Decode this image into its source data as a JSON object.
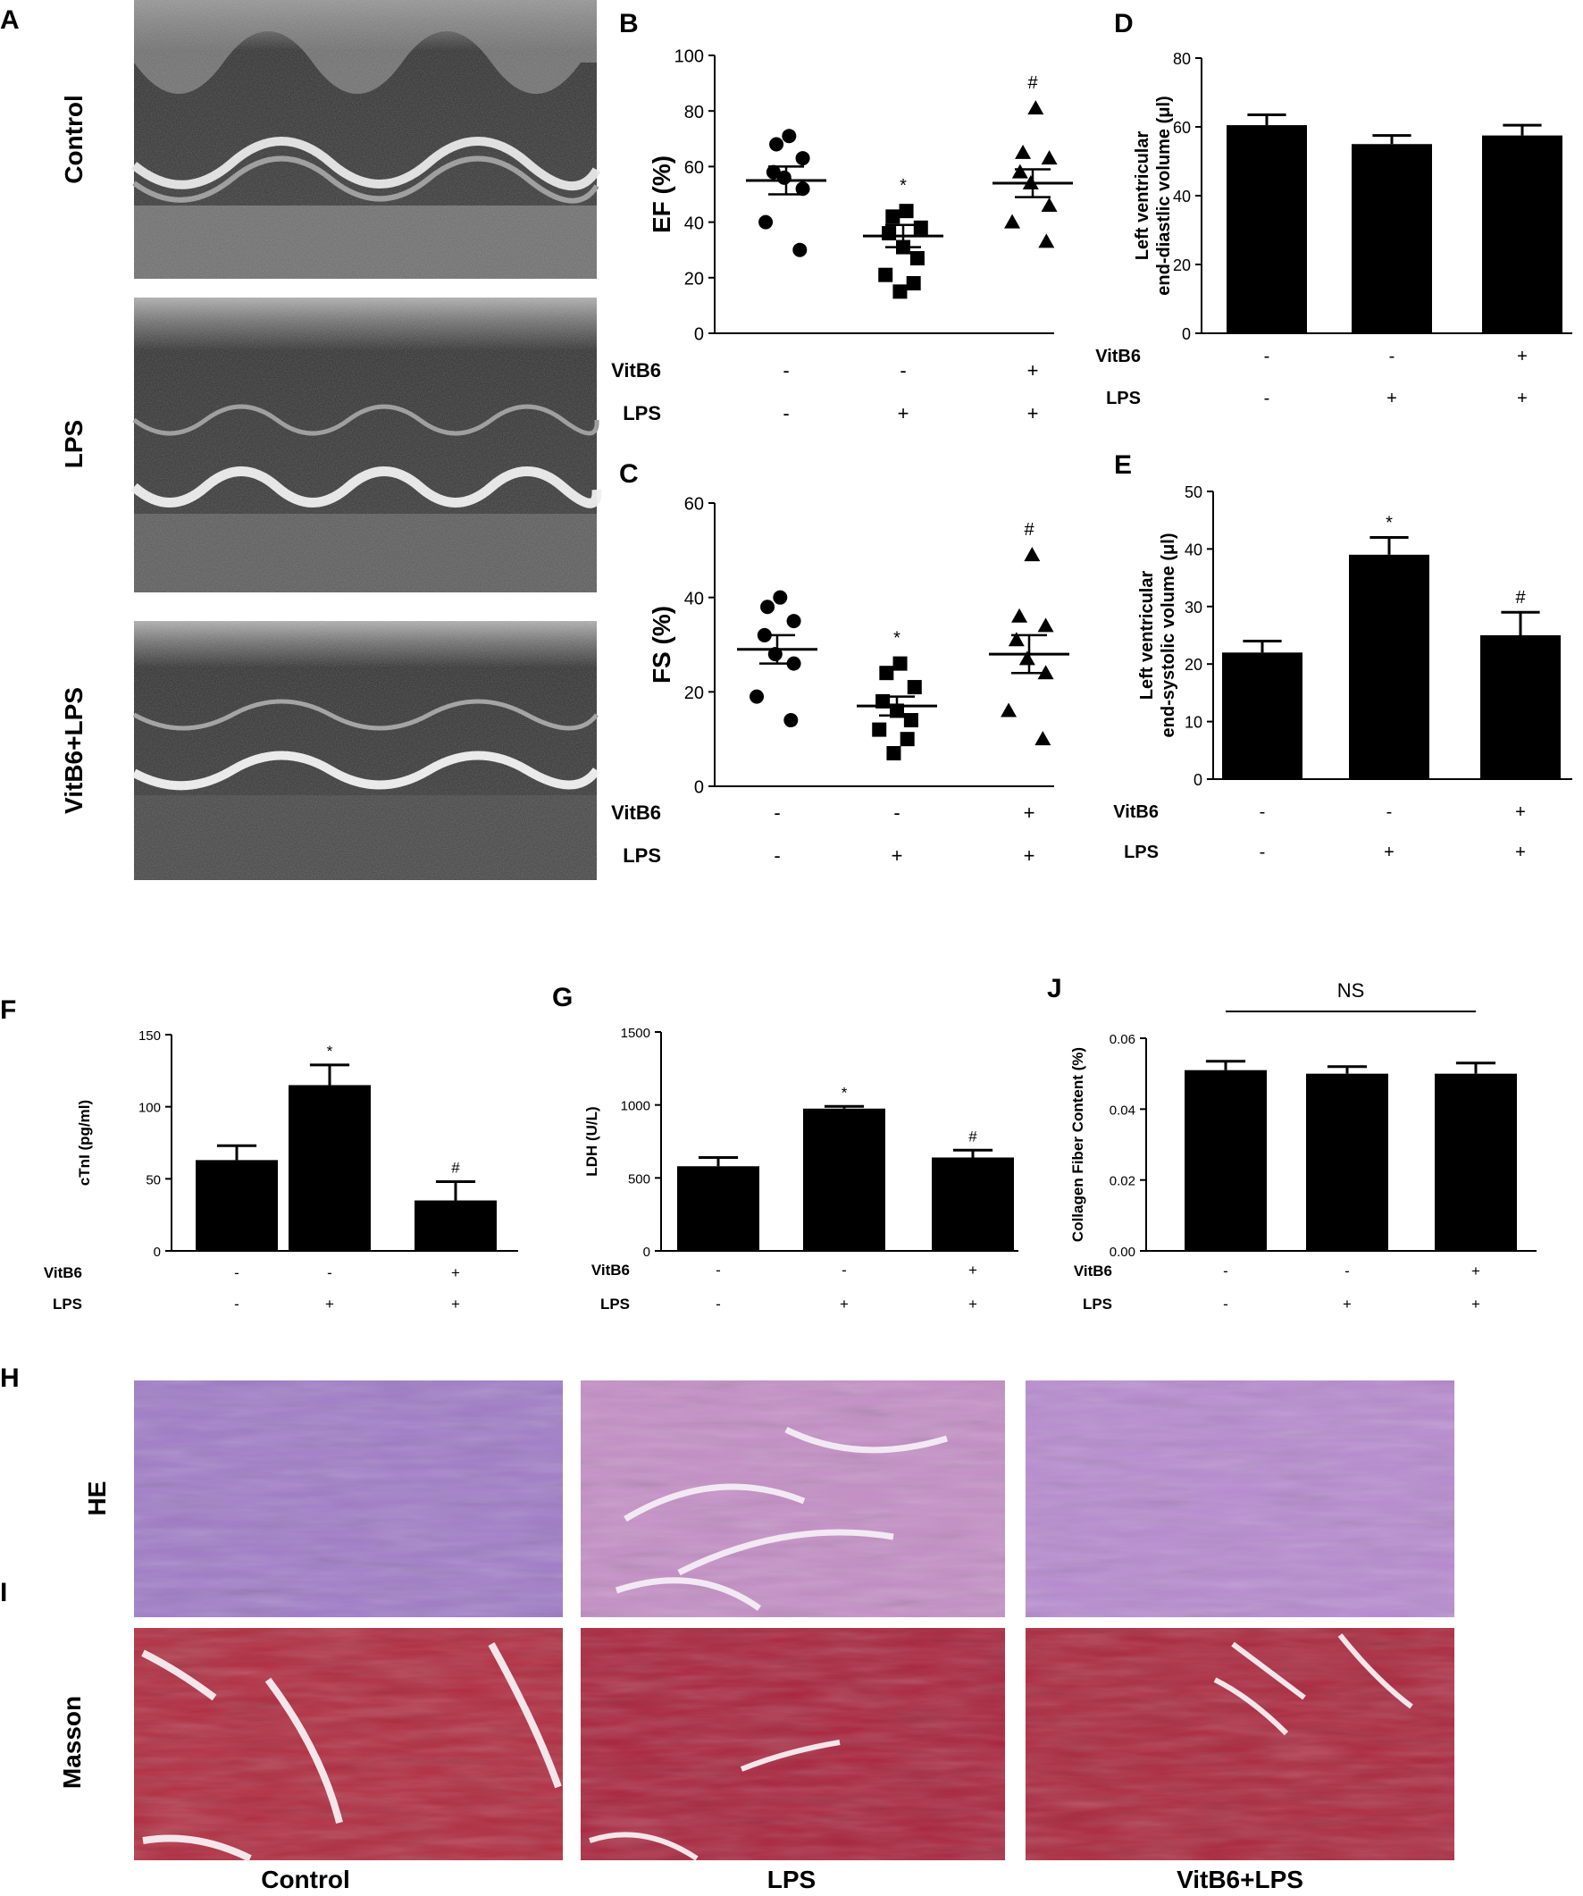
{
  "colors": {
    "bar": "#000000",
    "text": "#000000",
    "background": "#ffffff"
  },
  "panels": {
    "A": {
      "letter": "A",
      "row_labels": [
        "Control",
        "LPS",
        "VitB6+LPS"
      ]
    },
    "H": {
      "letter": "H",
      "row_label": "HE"
    },
    "I": {
      "letter": "I",
      "row_label": "Masson",
      "column_labels": [
        "Control",
        "LPS",
        "VitB6+LPS"
      ]
    }
  },
  "conditions": {
    "VitB6": {
      "label": "VitB6",
      "values": [
        "-",
        "-",
        "+"
      ]
    },
    "LPS": {
      "label": "LPS",
      "values": [
        "-",
        "+",
        "+"
      ]
    }
  },
  "chart_data": [
    {
      "panel": "B",
      "type": "scatter",
      "ylabel": "EF (%)",
      "ylim": [
        0,
        100
      ],
      "yticks": [
        "0",
        "20",
        "40",
        "60",
        "80",
        "100"
      ],
      "groups": [
        {
          "marker": "circle",
          "mean": 55,
          "sem": 5,
          "points": [
            71,
            68,
            63,
            58,
            56,
            52,
            40,
            30
          ],
          "mark": ""
        },
        {
          "marker": "square",
          "mean": 35,
          "sem": 4,
          "points": [
            44,
            42,
            38,
            36,
            31,
            27,
            21,
            18,
            15
          ],
          "mark": "*"
        },
        {
          "marker": "triangle",
          "mean": 54,
          "sem": 5,
          "points": [
            81,
            65,
            63,
            58,
            54,
            46,
            40,
            33
          ],
          "mark": "#"
        }
      ]
    },
    {
      "panel": "C",
      "type": "scatter",
      "ylabel": "FS (%)",
      "ylim": [
        0,
        60
      ],
      "yticks": [
        "0",
        "20",
        "40",
        "60"
      ],
      "groups": [
        {
          "marker": "circle",
          "mean": 29,
          "sem": 3,
          "points": [
            40,
            38,
            35,
            32,
            28,
            26,
            19,
            14
          ],
          "mark": ""
        },
        {
          "marker": "square",
          "mean": 17,
          "sem": 2,
          "points": [
            26,
            24,
            21,
            18,
            16,
            14,
            12,
            10,
            7
          ],
          "mark": "*"
        },
        {
          "marker": "triangle",
          "mean": 28,
          "sem": 4,
          "points": [
            49,
            36,
            34,
            31,
            27,
            24,
            16,
            10
          ],
          "mark": "#"
        }
      ]
    },
    {
      "panel": "D",
      "type": "bar",
      "ylabel": "Left ventricular end-diastlic volume (μl)",
      "ylim": [
        0,
        80
      ],
      "yticks": [
        "0",
        "20",
        "40",
        "60",
        "80"
      ],
      "values": [
        60.5,
        55,
        57.5
      ],
      "errors": [
        3,
        2.5,
        3
      ],
      "marks": [
        "",
        "",
        ""
      ]
    },
    {
      "panel": "E",
      "type": "bar",
      "ylabel": "Left ventricular end-systolic volume (μl)",
      "ylim": [
        0,
        50
      ],
      "yticks": [
        "0",
        "10",
        "20",
        "30",
        "40",
        "50"
      ],
      "values": [
        22,
        39,
        25
      ],
      "errors": [
        2,
        3,
        4
      ],
      "marks": [
        "",
        "*",
        "#"
      ]
    },
    {
      "panel": "F",
      "type": "bar",
      "ylabel": "cTnI (pg/ml)",
      "ylim": [
        0,
        150
      ],
      "yticks": [
        "0",
        "50",
        "100",
        "150"
      ],
      "values": [
        63,
        115,
        35
      ],
      "errors": [
        10,
        14,
        13
      ],
      "marks": [
        "",
        "*",
        "#"
      ]
    },
    {
      "panel": "G",
      "type": "bar",
      "ylabel": "LDH (U/L)",
      "ylim": [
        0,
        1500
      ],
      "yticks": [
        "0",
        "500",
        "1000",
        "1500"
      ],
      "values": [
        580,
        975,
        640
      ],
      "errors": [
        60,
        15,
        50
      ],
      "marks": [
        "",
        "*",
        "#"
      ]
    },
    {
      "panel": "J",
      "type": "bar",
      "ylabel": "Collagen Fiber Content (%)",
      "ylim": [
        0,
        0.06
      ],
      "yticks": [
        "0.00",
        "0.02",
        "0.04",
        "0.06"
      ],
      "values": [
        0.051,
        0.05,
        0.05
      ],
      "errors": [
        0.0025,
        0.002,
        0.003
      ],
      "marks": [
        "",
        "",
        ""
      ],
      "annotation": "NS"
    }
  ]
}
